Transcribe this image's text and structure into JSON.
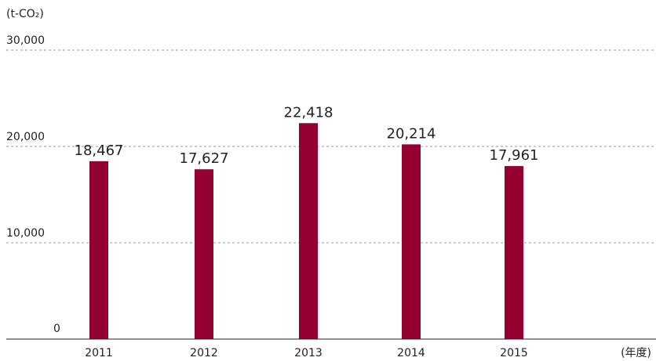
{
  "chart_data": {
    "type": "bar",
    "categories": [
      "2011",
      "2012",
      "2013",
      "2014",
      "2015"
    ],
    "values": [
      18467,
      17627,
      22418,
      20214,
      17961
    ],
    "value_labels": [
      "18,467",
      "17,627",
      "22,418",
      "20,214",
      "17,961"
    ],
    "y_ticks": [
      0,
      10000,
      20000,
      30000
    ],
    "y_tick_labels": [
      "0",
      "10,000",
      "20,000",
      "30,000"
    ],
    "ylim": [
      0,
      30000
    ],
    "y_unit": "(t-CO₂)",
    "x_unit": "(年度)",
    "grid": "dashed horizontal",
    "bar_color": "#94002F",
    "grid_color": "#999999",
    "axis_color": "#222222"
  }
}
